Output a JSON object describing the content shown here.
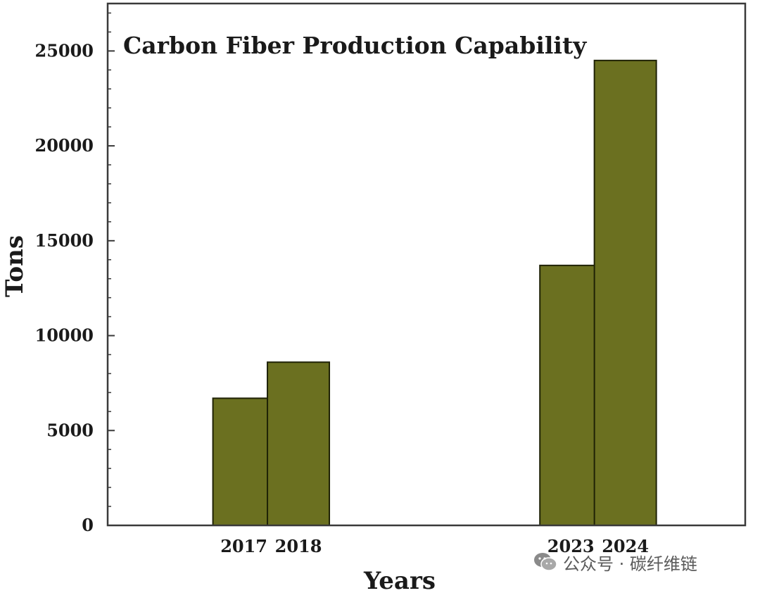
{
  "chart_data": {
    "type": "bar",
    "title": "Carbon Fiber Production Capability",
    "xlabel": "Years",
    "ylabel": "Tons",
    "categories": [
      "2017",
      "2018",
      "2023",
      "2024"
    ],
    "x": [
      2017,
      2018,
      2023,
      2024
    ],
    "values": [
      6700,
      8600,
      13700,
      24500
    ],
    "ylim": [
      0,
      27500
    ],
    "yticks": [
      0,
      5000,
      10000,
      15000,
      20000,
      25000
    ],
    "ytick_labels": [
      "0",
      "5000",
      "10000",
      "15000",
      "20000",
      "25000"
    ],
    "bar_color": "#6b7020",
    "grid": false,
    "legend": "none"
  },
  "watermark": {
    "text": "公众号 · 碳纤维链",
    "icon": "wechat-icon"
  }
}
